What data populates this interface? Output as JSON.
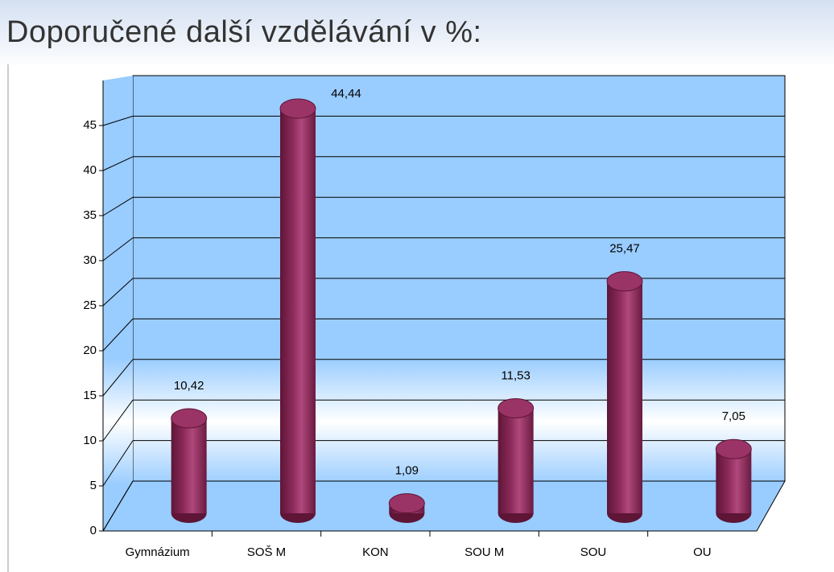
{
  "title": "Doporučené další vzdělávání v %:",
  "chart_data": {
    "type": "bar3d",
    "categories": [
      "Gymnázium",
      "SOŠ M",
      "KON",
      "SOU M",
      "SOU",
      "OU"
    ],
    "values": [
      10.42,
      44.44,
      1.09,
      11.53,
      25.47,
      7.05
    ],
    "value_labels": [
      "10,42",
      "44,44",
      "1,09",
      "11,53",
      "25,47",
      "7,05"
    ],
    "color": "#8b2a5a",
    "ylim": [
      0,
      50
    ],
    "yticks": [
      0,
      5,
      10,
      15,
      20,
      25,
      30,
      35,
      40,
      45
    ],
    "grid": true
  }
}
